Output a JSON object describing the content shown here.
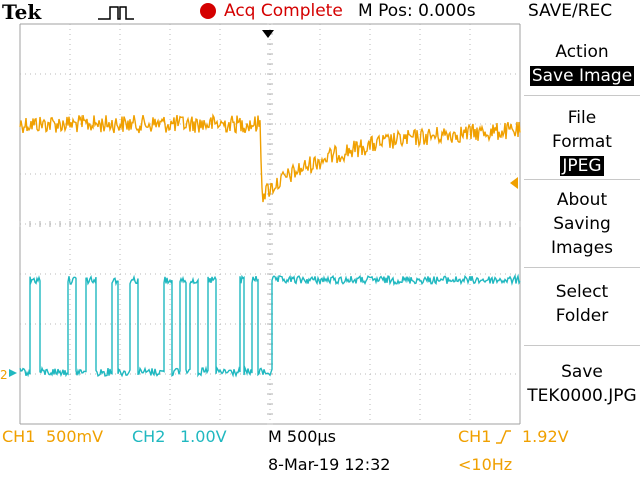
{
  "header": {
    "brand": "Tek",
    "trigger_icon": "pulse-trigger-icon",
    "acq_status": "Acq Complete",
    "m_pos": "M Pos: 0.000s",
    "menu_title": "SAVE/REC"
  },
  "side_menu": {
    "action_label": "Action",
    "action_value": "Save Image",
    "file_format_label_1": "File",
    "file_format_label_2": "Format",
    "file_format_value": "JPEG",
    "about_1": "About",
    "about_2": "Saving",
    "about_3": "Images",
    "select_1": "Select",
    "select_2": "Folder",
    "save_label": "Save",
    "save_file": "TEK0000.JPG"
  },
  "status_bar": {
    "ch1_label": "CH1",
    "ch1_scale": "500mV",
    "ch2_label": "CH2",
    "ch2_scale": "1.00V",
    "timebase": "M 500µs",
    "date_time": "8-Mar-19 12:32",
    "trigger_source": "CH1",
    "trigger_level": "1.92V",
    "trigger_freq": "<10Hz"
  },
  "markers": {
    "ch2_marker": "2"
  },
  "colors": {
    "ch1": "#f0a000",
    "ch2": "#20b8c0",
    "acq": "#d40000"
  }
}
